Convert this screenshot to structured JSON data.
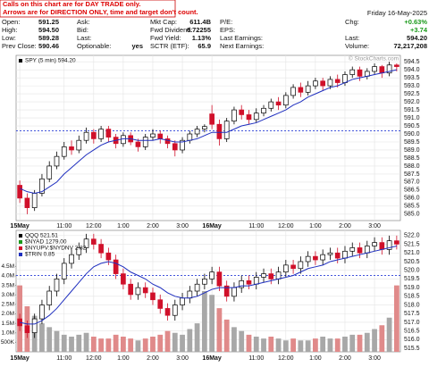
{
  "header": {
    "notice": [
      "Calls on this chart are for DAY TRADE only.",
      "Arrows are for DIRECTION ONLY, time and target don't count."
    ],
    "date": "Friday 16-May-2025",
    "watermark": "© StockCharts.com",
    "columns": [
      [
        {
          "label": "Open:",
          "value": "591.25"
        },
        {
          "label": "High:",
          "value": "594.50"
        },
        {
          "label": "Low:",
          "value": "589.28"
        },
        {
          "label": "Prev Close:",
          "value": "590.46"
        }
      ],
      [
        {
          "label": "Ask:"
        },
        {
          "label": "Bid:"
        },
        {
          "label": "Last:"
        },
        {
          "label": "Optionable:",
          "value": "yes"
        }
      ],
      [
        {
          "label": "Mkt Cap:",
          "value": "611.4B"
        },
        {
          "label": "Fwd Dividend:",
          "value": "6.72255"
        },
        {
          "label": "Fwd Yield:",
          "value": "1.13%"
        },
        {
          "label": "SCTR (ETF):",
          "value": "65.9"
        }
      ],
      [
        {
          "label": "P/E:"
        },
        {
          "label": "EPS:"
        },
        {
          "label": "Last Earnings:"
        },
        {
          "label": "Next Earnings:"
        }
      ],
      [
        {
          "label": "Chg:",
          "value": "+0.63%"
        },
        {
          "value": "+3.74"
        },
        {
          "label": "Last:",
          "value": "594.20"
        },
        {
          "label": "Volume:",
          "value": "72,217,208"
        }
      ]
    ]
  },
  "chart_data": [
    {
      "type": "candlestick",
      "legend": [
        "SPY (5 min) 594.20"
      ],
      "categories": [
        "15May",
        null,
        null,
        null,
        null,
        null,
        "11:00",
        null,
        null,
        null,
        "12:00",
        null,
        null,
        null,
        "1:00",
        null,
        null,
        null,
        "2:00",
        null,
        null,
        null,
        "3:00",
        null,
        null,
        null,
        "16May",
        null,
        null,
        null,
        null,
        null,
        "11:00",
        null,
        null,
        null,
        "12:00",
        null,
        null,
        null,
        "1:00",
        null,
        null,
        null,
        "2:00",
        null,
        null,
        null,
        "3:00",
        null,
        null,
        null
      ],
      "open": [
        586.8,
        586.0,
        585.4,
        586.3,
        587.2,
        588.0,
        588.6,
        589.2,
        589.0,
        589.6,
        590.1,
        589.7,
        590.3,
        589.8,
        589.4,
        589.9,
        589.5,
        589.2,
        589.8,
        590.0,
        589.7,
        589.4,
        589.0,
        589.6,
        590.0,
        590.3,
        591.25,
        590.6,
        589.7,
        590.8,
        591.5,
        591.2,
        590.9,
        591.3,
        591.6,
        592.0,
        591.8,
        592.4,
        592.9,
        592.6,
        593.0,
        593.3,
        593.0,
        593.4,
        593.2,
        593.7,
        594.0,
        593.6,
        593.9,
        594.2,
        593.8,
        594.3
      ],
      "high": [
        587.1,
        586.3,
        586.5,
        587.5,
        588.3,
        588.9,
        589.5,
        589.6,
        589.9,
        590.4,
        590.3,
        590.5,
        590.5,
        590.0,
        590.1,
        590.1,
        589.7,
        590.0,
        590.3,
        590.2,
        589.9,
        589.6,
        589.8,
        590.2,
        590.5,
        590.6,
        591.8,
        590.9,
        591.0,
        591.7,
        591.8,
        591.5,
        591.6,
        591.8,
        592.2,
        592.3,
        592.6,
        593.1,
        593.2,
        593.3,
        593.5,
        593.5,
        593.6,
        593.7,
        593.9,
        594.2,
        594.2,
        594.1,
        594.4,
        594.3,
        594.5,
        594.4
      ],
      "low": [
        585.7,
        585.0,
        585.2,
        586.1,
        587.0,
        587.8,
        588.4,
        588.7,
        588.8,
        589.4,
        589.4,
        589.5,
        589.5,
        589.1,
        589.2,
        589.3,
        588.9,
        589.0,
        589.6,
        589.4,
        589.1,
        588.6,
        588.8,
        589.4,
        589.8,
        590.1,
        590.3,
        589.28,
        589.5,
        590.6,
        590.9,
        590.6,
        590.7,
        591.1,
        591.4,
        591.5,
        591.6,
        592.2,
        592.3,
        592.4,
        592.8,
        592.7,
        592.8,
        592.9,
        593.0,
        593.5,
        593.3,
        593.4,
        593.7,
        593.5,
        593.6,
        593.9
      ],
      "close": [
        586.0,
        585.4,
        586.3,
        587.2,
        588.0,
        588.6,
        589.2,
        589.0,
        589.6,
        590.1,
        589.7,
        590.3,
        589.8,
        589.4,
        589.9,
        589.5,
        589.2,
        589.8,
        590.0,
        589.7,
        589.4,
        589.0,
        589.6,
        590.0,
        590.3,
        590.46,
        590.6,
        589.7,
        590.8,
        591.5,
        591.2,
        590.9,
        591.3,
        591.6,
        592.0,
        591.8,
        592.4,
        592.9,
        592.6,
        593.0,
        593.3,
        593.0,
        593.4,
        593.2,
        593.7,
        594.0,
        593.6,
        593.9,
        594.2,
        593.8,
        594.3,
        594.2
      ],
      "ma": {
        "color": "#1f2fbf",
        "values": [
          586.6,
          586.4,
          586.3,
          586.4,
          586.7,
          587.0,
          587.5,
          587.9,
          588.3,
          588.7,
          589.0,
          589.3,
          589.5,
          589.6,
          589.7,
          589.7,
          589.6,
          589.6,
          589.6,
          589.7,
          589.6,
          589.5,
          589.5,
          589.6,
          589.7,
          589.9,
          590.1,
          590.1,
          590.1,
          590.3,
          590.5,
          590.6,
          590.7,
          590.9,
          591.1,
          591.3,
          591.5,
          591.8,
          592.0,
          592.3,
          592.5,
          592.7,
          592.9,
          593.0,
          593.2,
          593.4,
          593.5,
          593.6,
          593.7,
          593.8,
          593.9,
          594.0
        ]
      },
      "hlines": [
        {
          "value": 590.2,
          "color": "#2a3fd6"
        }
      ],
      "up_color": "#000000",
      "down_color": "#d0102a",
      "ylim": [
        584.6,
        594.9
      ],
      "yticks": [
        {
          "value": 585,
          "label": "585.0"
        },
        585.5,
        {
          "value": 586,
          "label": "586.0"
        },
        586.5,
        {
          "value": 587,
          "label": "587.0"
        },
        587.5,
        {
          "value": 588,
          "label": "588.0"
        },
        588.5,
        {
          "value": 589,
          "label": "589.0"
        },
        589.5,
        {
          "value": 590,
          "label": "590.0"
        },
        590.5,
        {
          "value": 591,
          "label": "591.0"
        },
        591.5,
        {
          "value": 592,
          "label": "592.0"
        },
        592.5,
        {
          "value": 593,
          "label": "593.0"
        },
        593.5,
        {
          "value": 594,
          "label": "594.0"
        },
        594.5
      ],
      "grid": true
    },
    {
      "type": "candlestick",
      "legend": [
        "QQQ 521.51",
        "$NYAD 1279.00",
        "$NYUPV:$NYDNV 2.82",
        "$TRIN 0.85"
      ],
      "categories": [
        "15May",
        null,
        null,
        null,
        null,
        null,
        "11:00",
        null,
        null,
        null,
        "12:00",
        null,
        null,
        null,
        "1:00",
        null,
        null,
        null,
        "2:00",
        null,
        null,
        null,
        "3:00",
        null,
        null,
        null,
        "16May",
        null,
        null,
        null,
        null,
        null,
        "11:00",
        null,
        null,
        null,
        "12:00",
        null,
        null,
        null,
        "1:00",
        null,
        null,
        null,
        "2:00",
        null,
        null,
        null,
        "3:00",
        null,
        null,
        null
      ],
      "open": [
        517.2,
        516.8,
        516.4,
        517.2,
        518.0,
        518.8,
        519.5,
        520.4,
        520.9,
        521.3,
        521.8,
        521.5,
        521.0,
        520.6,
        519.8,
        519.2,
        518.6,
        519.0,
        518.7,
        518.3,
        517.8,
        517.4,
        518.0,
        518.4,
        518.8,
        519.2,
        519.5,
        519.9,
        519.1,
        518.5,
        519.0,
        519.4,
        519.2,
        519.6,
        519.8,
        519.5,
        519.9,
        520.3,
        520.1,
        520.5,
        520.8,
        520.6,
        520.9,
        521.0,
        520.7,
        521.1,
        521.3,
        521.0,
        521.4,
        521.6,
        521.2,
        521.7
      ],
      "high": [
        517.5,
        517.1,
        517.5,
        518.3,
        519.1,
        519.8,
        520.7,
        521.2,
        521.6,
        522.1,
        522.1,
        521.8,
        521.3,
        520.9,
        520.1,
        519.5,
        519.3,
        519.3,
        519.0,
        518.6,
        518.1,
        518.3,
        518.7,
        519.1,
        519.5,
        519.8,
        520.2,
        520.2,
        519.4,
        519.3,
        519.7,
        519.7,
        519.9,
        520.1,
        520.1,
        520.2,
        520.6,
        520.6,
        520.8,
        521.1,
        521.1,
        521.2,
        521.3,
        521.3,
        521.4,
        521.6,
        521.6,
        521.7,
        521.9,
        521.9,
        522.0,
        522.0
      ],
      "low": [
        516.5,
        516.1,
        516.1,
        516.9,
        517.7,
        518.5,
        519.2,
        520.1,
        520.6,
        521.0,
        521.2,
        520.7,
        520.3,
        519.5,
        518.9,
        518.3,
        518.3,
        518.4,
        518.0,
        517.5,
        517.1,
        517.1,
        517.7,
        518.1,
        518.5,
        518.9,
        519.2,
        518.8,
        518.2,
        518.2,
        518.7,
        518.9,
        518.9,
        519.3,
        519.2,
        519.2,
        519.6,
        519.8,
        519.8,
        520.2,
        520.3,
        520.3,
        520.6,
        520.4,
        520.4,
        520.8,
        520.7,
        520.7,
        521.1,
        520.9,
        520.9,
        521.2
      ],
      "close": [
        516.8,
        516.4,
        517.2,
        518.0,
        518.8,
        519.5,
        520.4,
        520.9,
        521.3,
        521.8,
        521.5,
        521.0,
        520.6,
        519.8,
        519.2,
        518.6,
        519.0,
        518.7,
        518.3,
        517.8,
        517.4,
        518.0,
        518.4,
        518.8,
        519.2,
        519.5,
        519.9,
        519.1,
        518.5,
        519.0,
        519.4,
        519.2,
        519.6,
        519.8,
        519.5,
        519.9,
        520.3,
        520.1,
        520.5,
        520.8,
        520.6,
        520.9,
        521.0,
        520.7,
        521.1,
        521.3,
        521.0,
        521.4,
        521.6,
        521.2,
        521.7,
        521.51
      ],
      "ma": {
        "color": "#1f2fbf",
        "values": [
          517.0,
          516.9,
          516.9,
          517.1,
          517.4,
          517.8,
          518.3,
          518.8,
          519.3,
          519.8,
          520.2,
          520.4,
          520.5,
          520.4,
          520.2,
          519.9,
          519.7,
          519.5,
          519.2,
          519.0,
          518.7,
          518.5,
          518.4,
          518.4,
          518.5,
          518.7,
          518.9,
          519.0,
          519.0,
          519.0,
          519.1,
          519.1,
          519.2,
          519.3,
          519.4,
          519.5,
          519.6,
          519.7,
          519.9,
          520.1,
          520.2,
          520.3,
          520.5,
          520.6,
          520.7,
          520.8,
          520.9,
          521.0,
          521.1,
          521.2,
          521.3,
          521.4
        ]
      },
      "hlines": [
        {
          "value": 519.7,
          "color": "#2a3fd6"
        }
      ],
      "up_color": "#000000",
      "down_color": "#d0102a",
      "ylim": [
        515.3,
        522.3
      ],
      "yticks": [
        515.5,
        {
          "value": 516,
          "label": "516.0"
        },
        516.5,
        {
          "value": 517,
          "label": "517.0"
        },
        517.5,
        {
          "value": 518,
          "label": "518.0"
        },
        518.5,
        {
          "value": 519,
          "label": "519.0"
        },
        519.5,
        {
          "value": 520,
          "label": "520.0"
        },
        520.5,
        {
          "value": 521,
          "label": "521.0"
        },
        521.5,
        {
          "value": 522,
          "label": "522.0"
        }
      ],
      "volume": {
        "color": "#a8a8a8",
        "down_color": "#e08a8a",
        "values": [
          3500000,
          2400000,
          1900000,
          1500000,
          1300000,
          1100000,
          900000,
          800000,
          900000,
          1000000,
          800000,
          700000,
          700000,
          900000,
          800000,
          700000,
          600000,
          700000,
          800000,
          900000,
          1100000,
          1000000,
          900000,
          1200000,
          1500000,
          3200000,
          3000000,
          2300000,
          1700000,
          1300000,
          1100000,
          900000,
          800000,
          700000,
          800000,
          700000,
          600000,
          700000,
          600000,
          600000,
          700000,
          800000,
          700000,
          700000,
          800000,
          900000,
          900000,
          1000000,
          1200000,
          1400000,
          1800000,
          3500000
        ],
        "ylim": [
          0,
          6400000
        ],
        "yticks": [
          {
            "value": 500000,
            "label": "500K"
          },
          {
            "value": 1000000,
            "label": "1.0M"
          },
          {
            "value": 1500000,
            "label": "1.5M"
          },
          {
            "value": 2000000,
            "label": "2.0M"
          },
          {
            "value": 2500000,
            "label": "2.5M"
          },
          {
            "value": 3000000,
            "label": "3.0M"
          },
          {
            "value": 3500000,
            "label": "3.5M"
          },
          {
            "value": 4000000,
            "label": "4.0M"
          },
          {
            "value": 4500000,
            "label": "4.5M"
          }
        ]
      },
      "grid": true
    }
  ]
}
